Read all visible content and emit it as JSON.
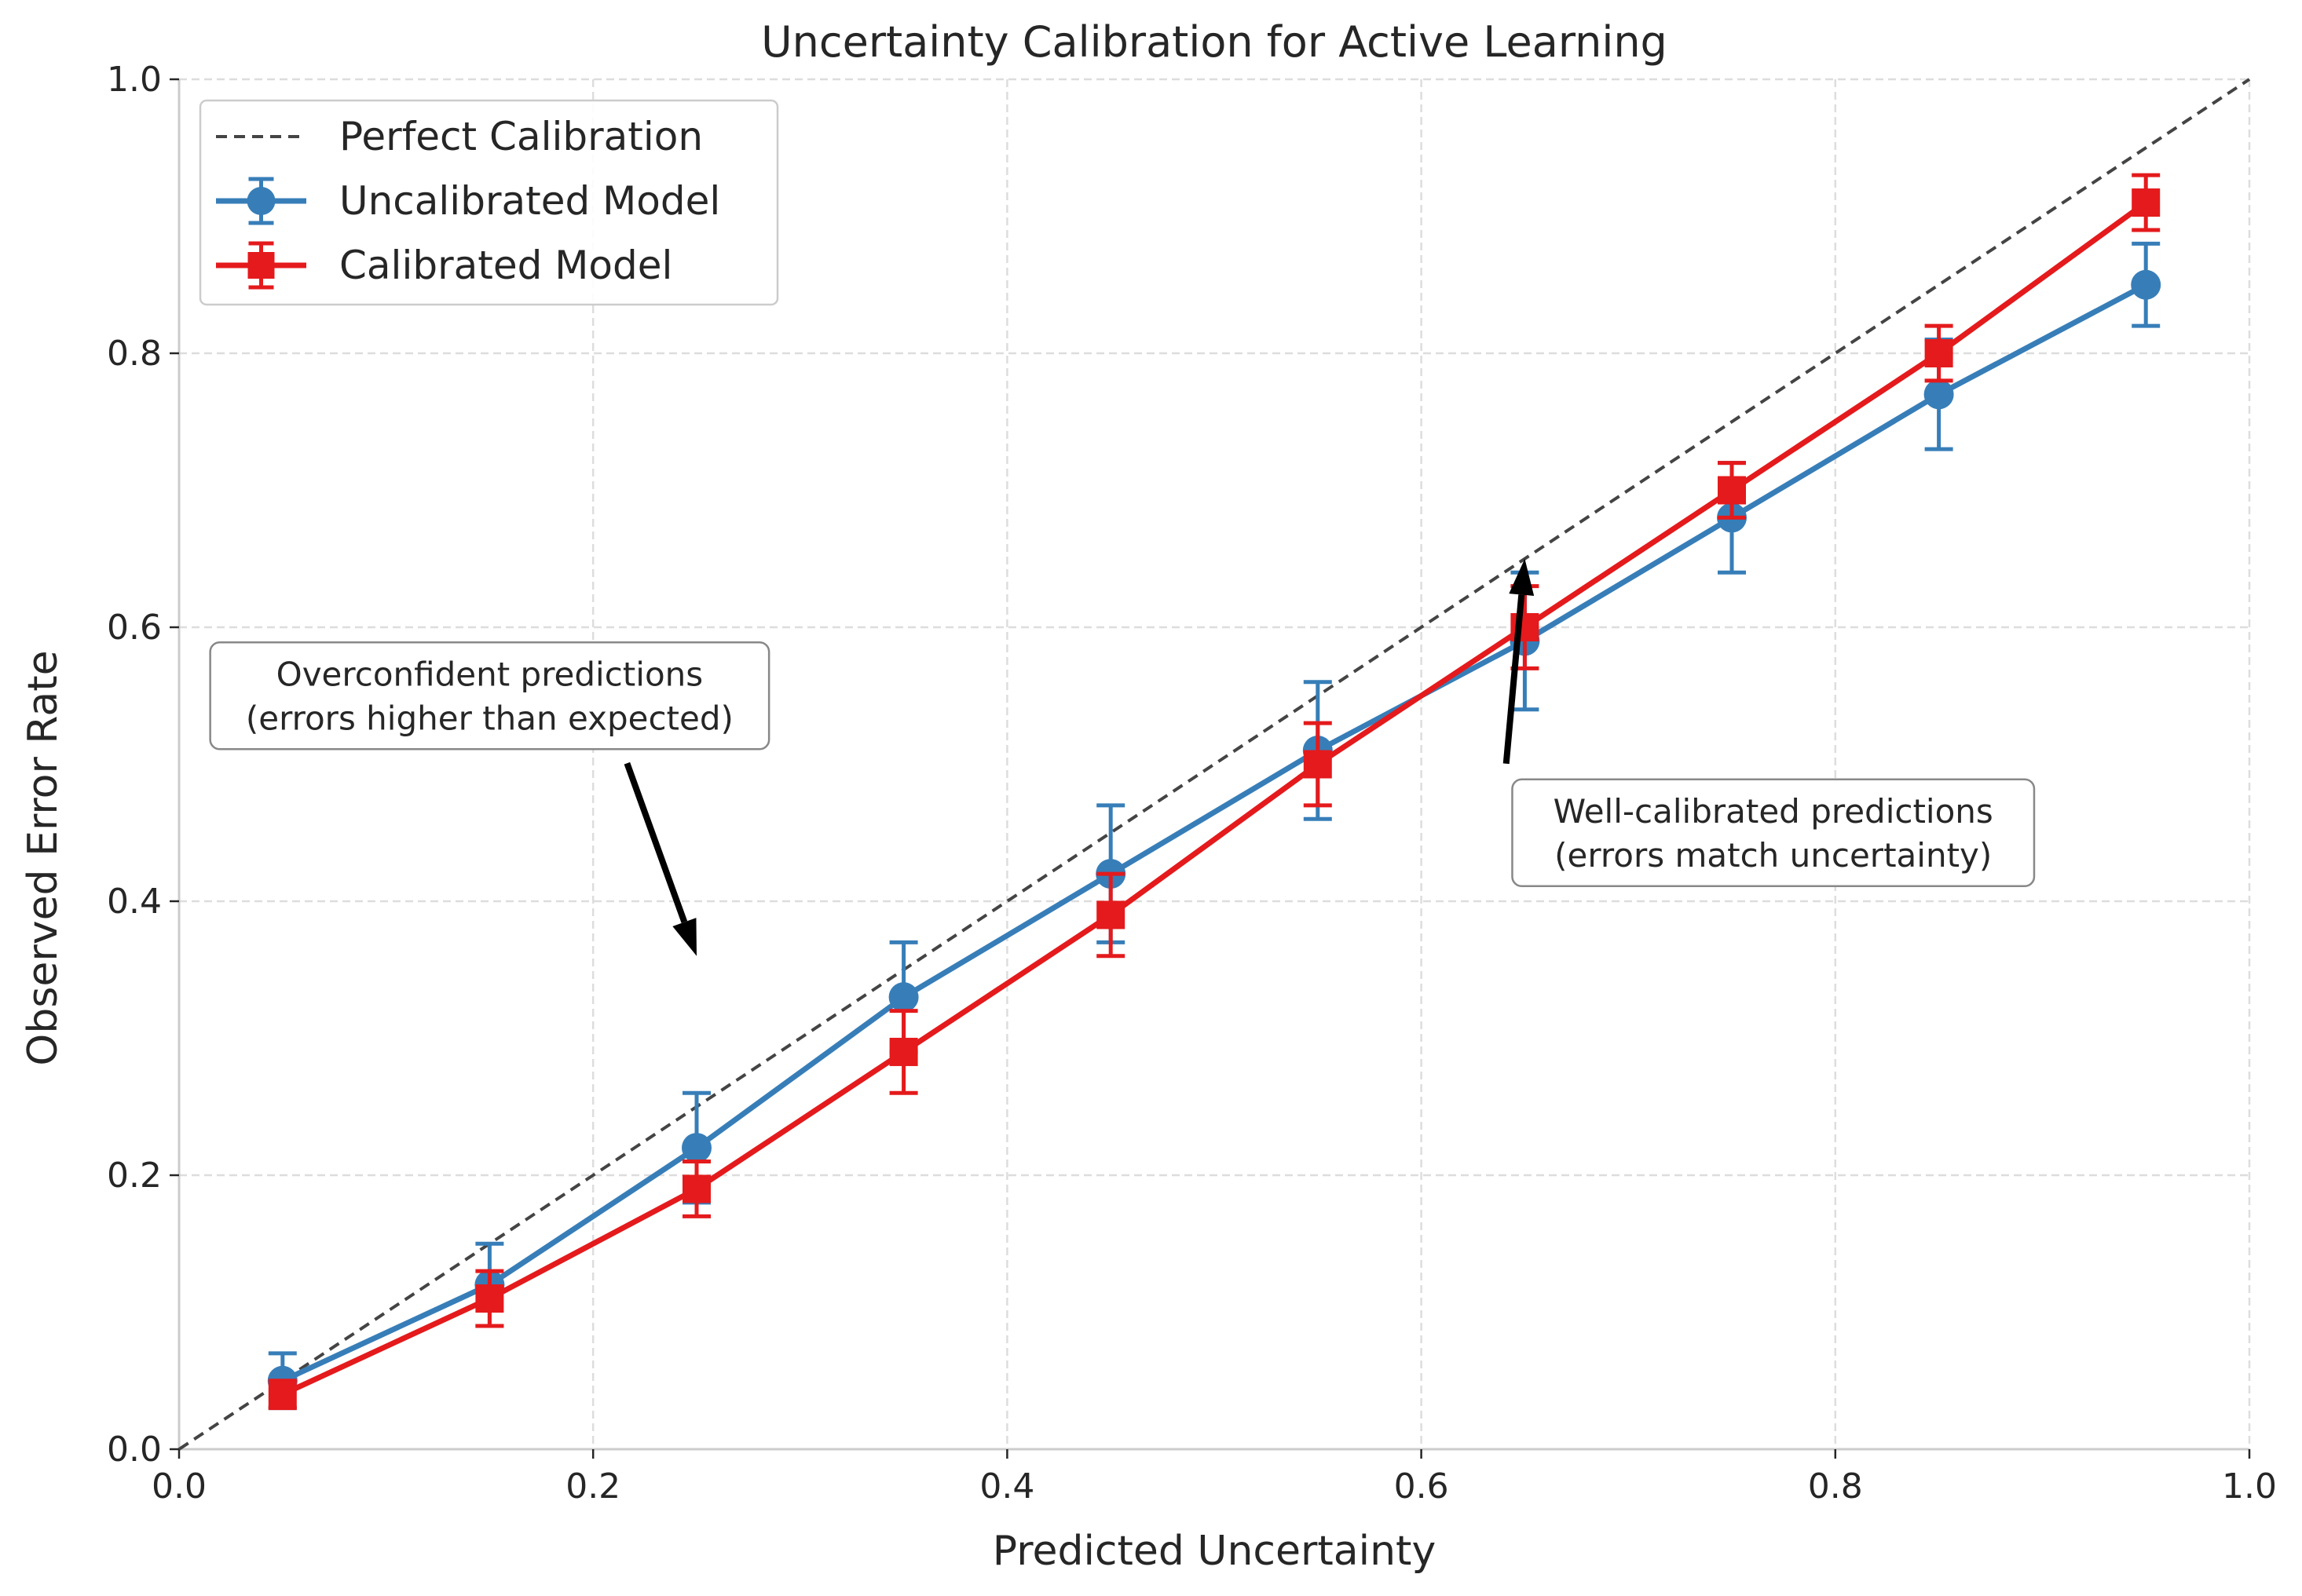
{
  "chart_data": {
    "type": "line",
    "title": "Uncertainty Calibration for Active Learning",
    "xlabel": "Predicted Uncertainty",
    "ylabel": "Observed Error Rate",
    "xlim": [
      0.0,
      1.0
    ],
    "ylim": [
      0.0,
      1.0
    ],
    "xticks": [
      "0.0",
      "0.2",
      "0.4",
      "0.6",
      "0.8",
      "1.0"
    ],
    "yticks": [
      "0.0",
      "0.2",
      "0.4",
      "0.6",
      "0.8",
      "1.0"
    ],
    "grid": true,
    "legend_position": "upper-left",
    "reference_line": {
      "name": "Perfect Calibration",
      "x": [
        0,
        1
      ],
      "y": [
        0,
        1
      ],
      "color": "#444444",
      "style": "dashed"
    },
    "x": [
      0.05,
      0.15,
      0.25,
      0.35,
      0.45,
      0.55,
      0.65,
      0.75,
      0.85,
      0.95
    ],
    "series": [
      {
        "name": "Uncalibrated Model",
        "color": "#377eb8",
        "marker": "circle",
        "values": [
          0.05,
          0.12,
          0.22,
          0.33,
          0.42,
          0.51,
          0.59,
          0.68,
          0.77,
          0.85
        ],
        "errors": [
          0.02,
          0.03,
          0.04,
          0.04,
          0.05,
          0.05,
          0.05,
          0.04,
          0.04,
          0.03
        ]
      },
      {
        "name": "Calibrated Model",
        "color": "#e41a1c",
        "marker": "square",
        "values": [
          0.04,
          0.11,
          0.19,
          0.29,
          0.39,
          0.5,
          0.6,
          0.7,
          0.8,
          0.91
        ],
        "errors": [
          0.01,
          0.02,
          0.02,
          0.03,
          0.03,
          0.03,
          0.03,
          0.02,
          0.02,
          0.02
        ]
      }
    ],
    "annotations": [
      {
        "lines": [
          "Overconfident predictions",
          "(errors higher than expected)"
        ],
        "point_to": [
          0.25,
          0.36
        ],
        "text_at": [
          0.15,
          0.55
        ]
      },
      {
        "lines": [
          "Well-calibrated predictions",
          "(errors match uncertainty)"
        ],
        "point_to": [
          0.65,
          0.65
        ],
        "text_at": [
          0.77,
          0.45
        ]
      }
    ]
  }
}
